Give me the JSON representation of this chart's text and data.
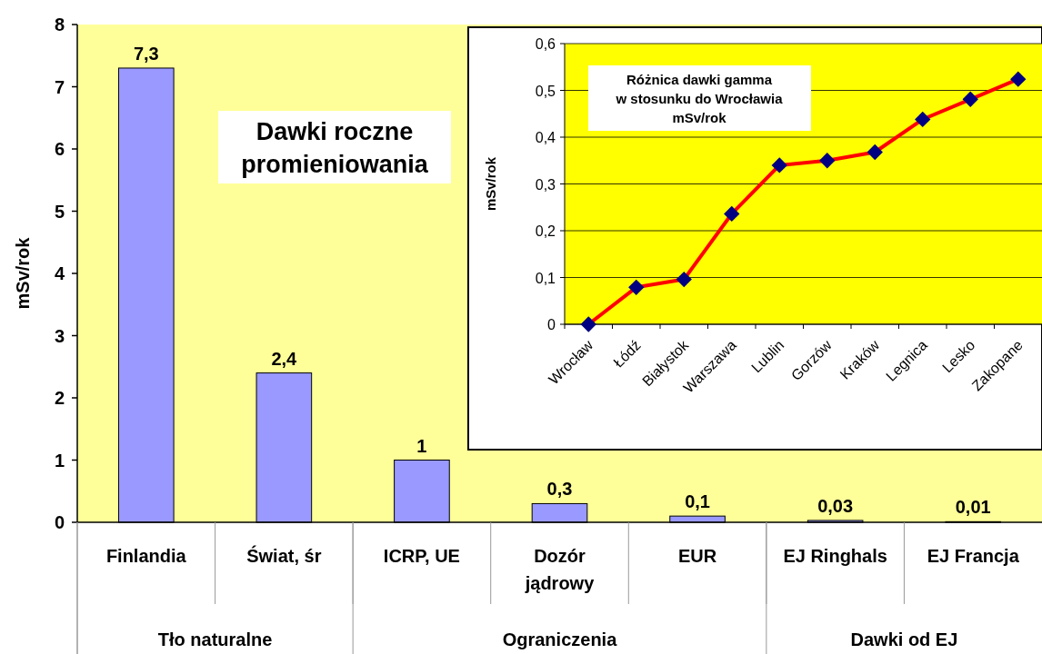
{
  "chart_data": [
    {
      "type": "bar",
      "title": "Dawki roczne promieniowania",
      "ylabel": "mSv/rok",
      "categories": [
        "Finlandia",
        "Świat, śr",
        "ICRP, UE",
        "Dozór jądrowy",
        "EUR",
        "EJ Ringhals",
        "EJ Francja"
      ],
      "series": [
        {
          "color": "#9999ff",
          "values": [
            7.3,
            2.4,
            1,
            0.3,
            0.1,
            0.03,
            0.01
          ],
          "value_labels": [
            "7,3",
            "2,4",
            "1",
            "0,3",
            "0,1",
            "0,03",
            "0,01"
          ]
        }
      ],
      "ylim": [
        0,
        8
      ],
      "yticks": [
        0,
        1,
        2,
        3,
        4,
        5,
        6,
        7,
        8
      ],
      "grid": false,
      "annotations": [
        "Tło naturalne",
        "Ograniczenia",
        "Dawki od EJ"
      ]
    },
    {
      "type": "line",
      "title": "Różnica dawki gamma\nw stosunku do Wrocławia\nmSv/rok",
      "ylabel": "mSv/rok",
      "categories": [
        "Wrocław",
        "Łódź",
        "Białystok",
        "Warszawa",
        "Lublin",
        "Gorzów",
        "Kraków",
        "Legnica",
        "Lesko",
        "Zakopane"
      ],
      "series": [
        {
          "color": "#ff0000",
          "values": [
            0,
            0.079,
            0.096,
            0.236,
            0.34,
            0.35,
            0.368,
            0.438,
            0.481,
            0.524
          ]
        }
      ],
      "ylim": [
        0,
        0.6
      ],
      "yticks": [
        0,
        {
          "value": 0.1,
          "label": "0,1"
        },
        {
          "value": 0.2,
          "label": "0,2"
        },
        {
          "value": 0.3,
          "label": "0,3"
        },
        {
          "value": 0.4,
          "label": "0,4"
        },
        {
          "value": 0.5,
          "label": "0,5"
        },
        {
          "value": 0.6,
          "label": "0,6"
        }
      ],
      "grid": "y",
      "marker": "diamond",
      "line_style": "solid"
    }
  ]
}
